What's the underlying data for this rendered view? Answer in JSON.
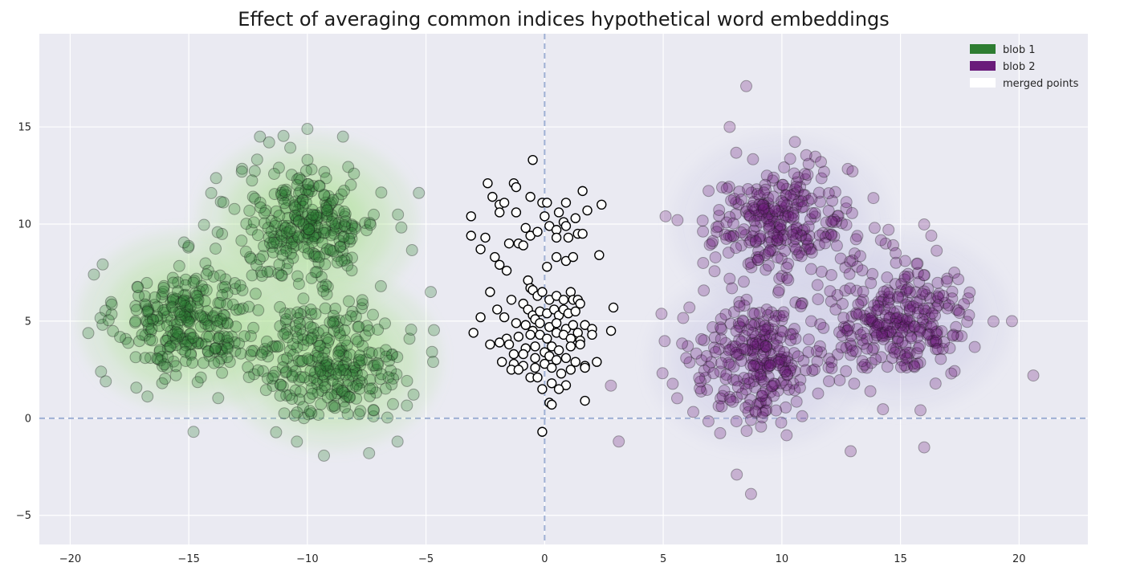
{
  "chart_data": {
    "type": "scatter",
    "title": "Effect of averaging common indices hypothetical word embeddings",
    "xlabel": "",
    "ylabel": "",
    "xlim": [
      -21.3,
      22.9
    ],
    "ylim": [
      -6.5,
      19.8
    ],
    "xticks": [
      -20,
      -15,
      -10,
      -5,
      0,
      5,
      10,
      15,
      20
    ],
    "yticks": [
      -5,
      0,
      5,
      10,
      15
    ],
    "tick_labels_x": [
      "−20",
      "−15",
      "−10",
      "−5",
      "0",
      "5",
      "10",
      "15",
      "20"
    ],
    "tick_labels_y": [
      "−5",
      "0",
      "5",
      "10",
      "15"
    ],
    "grid": true,
    "reference_lines": [
      {
        "axis": "x",
        "value": 0,
        "style": "dashed"
      },
      {
        "axis": "y",
        "value": 0,
        "style": "dashed"
      }
    ],
    "legend": {
      "position": "top-right",
      "entries": [
        {
          "label": "blob 1",
          "color": "#2e7d32"
        },
        {
          "label": "blob 2",
          "color": "#6a1b7a"
        },
        {
          "label": "merged points",
          "color": "#ffffff"
        }
      ]
    },
    "series": [
      {
        "name": "blob 1",
        "color": "#2e7d32",
        "density_color": "#a6e08c",
        "clusters": [
          {
            "center": [
              -15,
              5
            ],
            "std": 1.5,
            "count": 280
          },
          {
            "center": [
              -10,
              10
            ],
            "std": 1.5,
            "count": 280
          },
          {
            "center": [
              -9,
              3
            ],
            "std": 1.5,
            "count": 280
          }
        ],
        "outliers": [
          [
            -19,
            7.4
          ],
          [
            -18.7,
            2.4
          ],
          [
            -18.5,
            1.9
          ],
          [
            -14.8,
            -0.7
          ],
          [
            -6.2,
            -1.2
          ],
          [
            -7.4,
            -1.8
          ],
          [
            -10,
            14.9
          ],
          [
            -8.5,
            14.5
          ],
          [
            -4.8,
            6.5
          ],
          [
            -4.7,
            2.9
          ],
          [
            -5.3,
            11.6
          ],
          [
            -12,
            14.5
          ]
        ]
      },
      {
        "name": "blob 2",
        "color": "#6a1b7a",
        "density_color": "#c9c6e6",
        "clusters": [
          {
            "center": [
              10,
              10
            ],
            "std": 1.5,
            "count": 280
          },
          {
            "center": [
              15,
              5
            ],
            "std": 1.5,
            "count": 280
          },
          {
            "center": [
              9,
              3
            ],
            "std": 1.5,
            "count": 280
          }
        ],
        "outliers": [
          [
            8.5,
            17.1
          ],
          [
            20.6,
            2.2
          ],
          [
            19.7,
            5
          ],
          [
            16,
            -1.5
          ],
          [
            8.7,
            -3.9
          ],
          [
            8.1,
            -2.9
          ],
          [
            12.9,
            -1.7
          ],
          [
            5.6,
            10.2
          ],
          [
            7.8,
            15
          ],
          [
            16.3,
            9.4
          ],
          [
            5.1,
            10.4
          ]
        ]
      },
      {
        "name": "merged points",
        "color": "#ffffff",
        "edge_color": "#000000",
        "points": [
          [
            -0.5,
            13.3
          ],
          [
            -2.4,
            12.1
          ],
          [
            -1.3,
            12.1
          ],
          [
            -1.2,
            11.9
          ],
          [
            -2.2,
            11.4
          ],
          [
            -1.9,
            11
          ],
          [
            -1.7,
            11.1
          ],
          [
            -0.6,
            11.4
          ],
          [
            -0.1,
            11.1
          ],
          [
            0.1,
            11.1
          ],
          [
            0.9,
            11.1
          ],
          [
            1.6,
            11.7
          ],
          [
            2.4,
            11
          ],
          [
            -3.1,
            10.4
          ],
          [
            -1.9,
            10.6
          ],
          [
            -1.2,
            10.6
          ],
          [
            0,
            10.4
          ],
          [
            0.6,
            10.6
          ],
          [
            0.8,
            10.1
          ],
          [
            1.3,
            10.3
          ],
          [
            1.8,
            10.7
          ],
          [
            -3.1,
            9.4
          ],
          [
            -2.5,
            9.3
          ],
          [
            -2.7,
            8.7
          ],
          [
            -1.5,
            9
          ],
          [
            -1.1,
            9
          ],
          [
            -0.8,
            9.8
          ],
          [
            -0.6,
            9.4
          ],
          [
            -0.3,
            9.6
          ],
          [
            0.2,
            9.9
          ],
          [
            0.5,
            9.7
          ],
          [
            0.5,
            9.3
          ],
          [
            0.9,
            9.9
          ],
          [
            1,
            9.3
          ],
          [
            1.4,
            9.5
          ],
          [
            1.6,
            9.5
          ],
          [
            -2.1,
            8.3
          ],
          [
            -1.9,
            7.9
          ],
          [
            -1.6,
            7.6
          ],
          [
            -0.9,
            8.9
          ],
          [
            0.1,
            7.8
          ],
          [
            0.5,
            8.3
          ],
          [
            0.9,
            8.1
          ],
          [
            1.2,
            8.3
          ],
          [
            2.3,
            8.4
          ],
          [
            -0.7,
            7.1
          ],
          [
            -0.6,
            6.7
          ],
          [
            -0.5,
            6.6
          ],
          [
            -0.3,
            6.3
          ],
          [
            -0.1,
            6.5
          ],
          [
            0.2,
            6.1
          ],
          [
            0.5,
            6.3
          ],
          [
            0.8,
            6.1
          ],
          [
            1.1,
            6.5
          ],
          [
            1.2,
            6.1
          ],
          [
            1.4,
            6.1
          ],
          [
            2.9,
            5.7
          ],
          [
            -2.3,
            6.5
          ],
          [
            -2,
            5.6
          ],
          [
            -1.4,
            6.1
          ],
          [
            -0.9,
            5.9
          ],
          [
            -0.7,
            5.6
          ],
          [
            -0.5,
            5.3
          ],
          [
            -0.4,
            5.1
          ],
          [
            -0.2,
            5.5
          ],
          [
            0.1,
            5.4
          ],
          [
            0.4,
            5.6
          ],
          [
            0.6,
            5.3
          ],
          [
            0.8,
            5.6
          ],
          [
            1,
            5.4
          ],
          [
            1.3,
            5.5
          ],
          [
            1.5,
            5.9
          ],
          [
            -2.7,
            5.2
          ],
          [
            -1.7,
            5.2
          ],
          [
            -1.2,
            4.9
          ],
          [
            -0.8,
            4.8
          ],
          [
            -0.5,
            4.5
          ],
          [
            -0.2,
            4.9
          ],
          [
            0.2,
            4.7
          ],
          [
            0.5,
            4.9
          ],
          [
            0.9,
            4.6
          ],
          [
            1.2,
            4.8
          ],
          [
            1.7,
            4.8
          ],
          [
            2,
            4.6
          ],
          [
            2.8,
            4.5
          ],
          [
            -3,
            4.4
          ],
          [
            -1.6,
            4.1
          ],
          [
            -1.1,
            4.2
          ],
          [
            -0.6,
            4.3
          ],
          [
            -0.2,
            4.3
          ],
          [
            0.1,
            4.1
          ],
          [
            0.5,
            4.4
          ],
          [
            0.8,
            4.3
          ],
          [
            1.1,
            4.1
          ],
          [
            1.4,
            4.4
          ],
          [
            1.5,
            4
          ],
          [
            2,
            4.3
          ],
          [
            -2.3,
            3.8
          ],
          [
            -1.9,
            3.9
          ],
          [
            -1.5,
            3.8
          ],
          [
            -0.8,
            3.6
          ],
          [
            -0.4,
            3.7
          ],
          [
            0,
            3.4
          ],
          [
            0.3,
            3.7
          ],
          [
            0.6,
            3.5
          ],
          [
            1.1,
            3.7
          ],
          [
            1.5,
            3.8
          ],
          [
            -1.3,
            3.3
          ],
          [
            -0.9,
            3.3
          ],
          [
            -0.4,
            3.1
          ],
          [
            0.2,
            3.2
          ],
          [
            0.5,
            3
          ],
          [
            0.9,
            3.1
          ],
          [
            1.3,
            2.9
          ],
          [
            1.7,
            2.7
          ],
          [
            2.2,
            2.9
          ],
          [
            -1.8,
            2.9
          ],
          [
            -1.3,
            2.8
          ],
          [
            -0.9,
            2.7
          ],
          [
            -0.4,
            2.6
          ],
          [
            0,
            2.8
          ],
          [
            0.3,
            2.6
          ],
          [
            0.7,
            2.3
          ],
          [
            1.1,
            2.5
          ],
          [
            1.7,
            2.6
          ],
          [
            -1.4,
            2.5
          ],
          [
            -1.1,
            2.5
          ],
          [
            -0.6,
            2.1
          ],
          [
            -0.3,
            2.1
          ],
          [
            0.3,
            1.8
          ],
          [
            0.9,
            1.7
          ],
          [
            -0.1,
            1.5
          ],
          [
            0.6,
            1.5
          ],
          [
            1.7,
            0.9
          ],
          [
            0.2,
            0.8
          ],
          [
            0.3,
            0.7
          ],
          [
            -0.1,
            -0.7
          ]
        ]
      }
    ]
  }
}
